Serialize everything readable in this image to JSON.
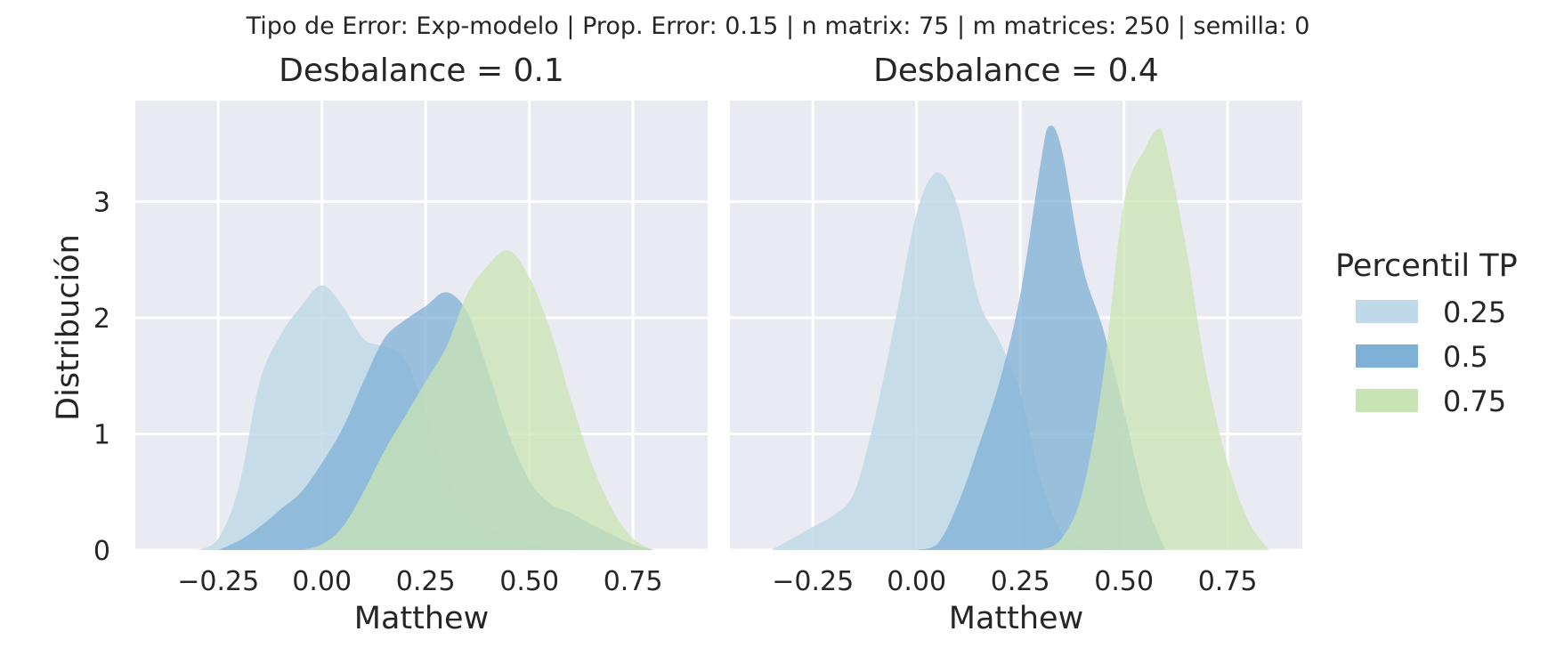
{
  "figure": {
    "suptitle": "Tipo de Error: Exp-modelo | Prop. Error: 0.15 | n matrix: 75 | m matrices: 250 | semilla: 0"
  },
  "chart_data": {
    "type": "area",
    "subtype": "kde",
    "ylabel": "Distribución",
    "xlim": [
      -0.45,
      0.93
    ],
    "ylim": [
      0,
      3.87
    ],
    "xticks": [
      -0.25,
      0.0,
      0.25,
      0.5,
      0.75
    ],
    "xtick_labels": [
      "−0.25",
      "0.00",
      "0.25",
      "0.50",
      "0.75"
    ],
    "yticks": [
      0,
      1,
      2,
      3
    ],
    "ytick_labels": [
      "0",
      "1",
      "2",
      "3"
    ],
    "grid": true,
    "legend": {
      "title": "Percentil TP",
      "placement": "right",
      "entries": [
        {
          "label": "0.25",
          "color": "#c0d9e8"
        },
        {
          "label": "0.5",
          "color": "#7fb0d6"
        },
        {
          "label": "0.75",
          "color": "#c9e4b4"
        }
      ]
    },
    "panels": [
      {
        "title": "Desbalance = 0.1",
        "xlabel": "Matthew",
        "series": [
          {
            "name": "0.25",
            "color": "#c0d9e8",
            "alpha": 0.85,
            "x": [
              -0.3,
              -0.25,
              -0.2,
              -0.15,
              -0.1,
              -0.05,
              0.0,
              0.05,
              0.1,
              0.15,
              0.2,
              0.25,
              0.3,
              0.35,
              0.4,
              0.45,
              0.5,
              0.55,
              0.6,
              0.65,
              0.7,
              0.75
            ],
            "y": [
              0,
              0.1,
              0.55,
              1.45,
              1.85,
              2.1,
              2.28,
              2.1,
              1.82,
              1.75,
              1.65,
              1.2,
              0.65,
              0.35,
              0.2,
              0.12,
              0.05,
              0.02,
              0.01,
              0,
              0,
              0
            ]
          },
          {
            "name": "0.5",
            "color": "#7fb0d6",
            "alpha": 0.75,
            "x": [
              -0.25,
              -0.2,
              -0.15,
              -0.1,
              -0.05,
              0.0,
              0.05,
              0.1,
              0.15,
              0.2,
              0.25,
              0.3,
              0.35,
              0.4,
              0.45,
              0.5,
              0.55,
              0.6,
              0.65,
              0.7,
              0.75,
              0.8
            ],
            "y": [
              0,
              0.08,
              0.2,
              0.35,
              0.5,
              0.75,
              1.05,
              1.45,
              1.82,
              1.98,
              2.1,
              2.22,
              2.05,
              1.55,
              1.0,
              0.6,
              0.4,
              0.32,
              0.22,
              0.13,
              0.05,
              0
            ]
          },
          {
            "name": "0.75",
            "color": "#c9e4b4",
            "alpha": 0.75,
            "x": [
              -0.05,
              0.0,
              0.05,
              0.1,
              0.15,
              0.2,
              0.25,
              0.3,
              0.35,
              0.4,
              0.45,
              0.5,
              0.55,
              0.6,
              0.65,
              0.7,
              0.75,
              0.8
            ],
            "y": [
              0,
              0.05,
              0.2,
              0.5,
              0.85,
              1.15,
              1.45,
              1.75,
              2.2,
              2.45,
              2.58,
              2.35,
              1.9,
              1.3,
              0.75,
              0.35,
              0.1,
              0
            ]
          }
        ]
      },
      {
        "title": "Desbalance = 0.4",
        "xlabel": "Matthew",
        "series": [
          {
            "name": "0.25",
            "color": "#c0d9e8",
            "alpha": 0.85,
            "x": [
              -0.35,
              -0.3,
              -0.25,
              -0.2,
              -0.15,
              -0.1,
              -0.05,
              0.0,
              0.05,
              0.1,
              0.15,
              0.2,
              0.25,
              0.3,
              0.35,
              0.4,
              0.45,
              0.5
            ],
            "y": [
              0,
              0.1,
              0.2,
              0.3,
              0.5,
              1.15,
              2.0,
              2.9,
              3.25,
              2.95,
              2.15,
              1.8,
              1.35,
              0.6,
              0.15,
              0.04,
              0.01,
              0
            ]
          },
          {
            "name": "0.5",
            "color": "#7fb0d6",
            "alpha": 0.75,
            "x": [
              0.0,
              0.05,
              0.1,
              0.15,
              0.2,
              0.25,
              0.3,
              0.32,
              0.35,
              0.4,
              0.45,
              0.5,
              0.55,
              0.6
            ],
            "y": [
              0,
              0.05,
              0.4,
              0.9,
              1.45,
              2.2,
              3.35,
              3.65,
              3.45,
              2.45,
              1.9,
              1.2,
              0.45,
              0
            ]
          },
          {
            "name": "0.75",
            "color": "#c9e4b4",
            "alpha": 0.75,
            "x": [
              0.3,
              0.35,
              0.4,
              0.45,
              0.5,
              0.55,
              0.58,
              0.6,
              0.65,
              0.7,
              0.75,
              0.8,
              0.85
            ],
            "y": [
              0,
              0.1,
              0.5,
              1.5,
              3.0,
              3.45,
              3.62,
              3.5,
              2.6,
              1.5,
              0.75,
              0.25,
              0
            ]
          }
        ]
      }
    ]
  }
}
